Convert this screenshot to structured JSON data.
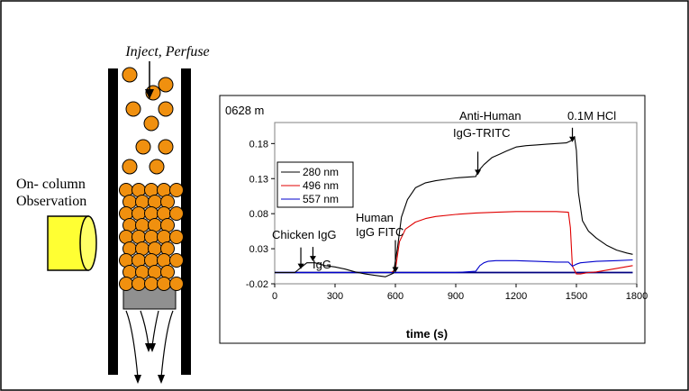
{
  "column": {
    "inject_label": "Inject, Perfuse",
    "observation_line1": "On- column",
    "observation_line2": "Observation"
  },
  "chart_data": {
    "type": "line",
    "chart_id_label": "0628 m",
    "xlabel": "time (s)",
    "ylabel": "",
    "xlim": [
      0,
      1800
    ],
    "ylim": [
      -0.02,
      0.21
    ],
    "x_ticks": [
      0,
      300,
      600,
      900,
      1200,
      1500,
      1800
    ],
    "x_tick_labels": [
      "0",
      "300",
      "600",
      "900",
      "1200",
      "1500",
      "1800"
    ],
    "y_ticks": [
      -0.02,
      0.03,
      0.08,
      0.13,
      0.18
    ],
    "y_tick_labels": [
      "-0.02",
      "0.03",
      "0.08",
      "0.13",
      "0.18"
    ],
    "grid": false,
    "legend": "top-left",
    "colors": {
      "280 nm": "#000000",
      "496 nm": "#e00000",
      "557 nm": "#0000cc",
      "baseline": "#000080"
    },
    "series": [
      {
        "name": "280 nm",
        "x": [
          0,
          100,
          130,
          160,
          200,
          250,
          300,
          350,
          400,
          450,
          500,
          550,
          590,
          610,
          630,
          660,
          700,
          750,
          800,
          850,
          900,
          950,
          1000,
          1010,
          1040,
          1080,
          1120,
          1150,
          1200,
          1250,
          1300,
          1350,
          1400,
          1450,
          1480,
          1490,
          1500,
          1510,
          1530,
          1560,
          1600,
          1650,
          1700,
          1750,
          1780
        ],
        "values": [
          -0.004,
          -0.004,
          0.003,
          0.01,
          0.01,
          0.006,
          0.004,
          0.001,
          -0.003,
          -0.006,
          -0.008,
          -0.01,
          -0.005,
          0.03,
          0.075,
          0.1,
          0.117,
          0.124,
          0.127,
          0.129,
          0.131,
          0.132,
          0.133,
          0.14,
          0.15,
          0.16,
          0.165,
          0.169,
          0.175,
          0.177,
          0.178,
          0.179,
          0.18,
          0.181,
          0.185,
          0.19,
          0.17,
          0.11,
          0.07,
          0.055,
          0.045,
          0.035,
          0.028,
          0.024,
          0.022
        ]
      },
      {
        "name": "496 nm",
        "x": [
          0,
          580,
          600,
          620,
          650,
          700,
          750,
          800,
          900,
          1000,
          1100,
          1200,
          1300,
          1400,
          1460,
          1470,
          1480,
          1500,
          1520,
          1560,
          1600,
          1700,
          1780
        ],
        "values": [
          -0.004,
          -0.004,
          0.0,
          0.04,
          0.058,
          0.068,
          0.073,
          0.076,
          0.079,
          0.081,
          0.082,
          0.083,
          0.083,
          0.083,
          0.082,
          0.06,
          0.005,
          -0.006,
          -0.006,
          -0.004,
          -0.003,
          0.002,
          0.006
        ]
      },
      {
        "name": "557 nm",
        "x": [
          0,
          900,
          950,
          1000,
          1020,
          1040,
          1060,
          1100,
          1200,
          1300,
          1400,
          1460,
          1480,
          1500,
          1520,
          1600,
          1700,
          1780
        ],
        "values": [
          -0.004,
          -0.004,
          -0.003,
          -0.002,
          0.006,
          0.01,
          0.012,
          0.013,
          0.013,
          0.012,
          0.011,
          0.011,
          0.005,
          0.008,
          0.01,
          0.012,
          0.013,
          0.014
        ]
      },
      {
        "x": [
          0,
          1780
        ],
        "values": [
          -0.004,
          -0.004
        ]
      }
    ],
    "annotations": [
      {
        "text": "Chicken IgG",
        "x": 130,
        "y": 0.001
      },
      {
        "text": "IgG",
        "x": 190,
        "y": 0.012
      },
      {
        "text": "Human IgG FITC",
        "x": 600,
        "y": -0.004
      },
      {
        "text": "Anti-Human IgG-TRITC",
        "x": 1010,
        "y": 0.135
      },
      {
        "text": "0.1M HCl",
        "x": 1480,
        "y": 0.182
      }
    ],
    "annotation_labels": {
      "chicken_igg": "Chicken IgG",
      "igg": "IgG",
      "human_1": "Human",
      "human_2": "IgG FITC",
      "anti_human_1": "Anti-Human",
      "anti_human_2": "IgG-TRITC",
      "hcl": "0.1M HCl"
    }
  }
}
